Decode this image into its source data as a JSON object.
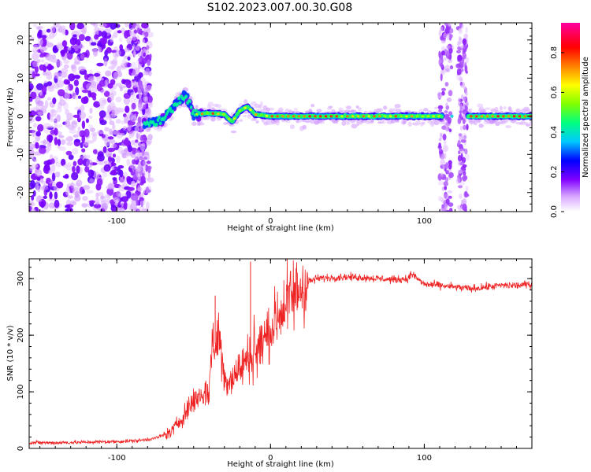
{
  "title": "S102.2023.007.00.30.G08",
  "chart_data": [
    {
      "type": "heatmap",
      "xlabel": "Height of straight line (km)",
      "ylabel": "Frequency (Hz)",
      "xlim": [
        -157,
        170
      ],
      "ylim": [
        -25,
        24.5
      ],
      "x_ticks": [
        -100,
        0,
        100
      ],
      "y_ticks": [
        -20,
        -10,
        0,
        10,
        20
      ],
      "colorbar": {
        "label": "Normalized spectral amplitude",
        "range": [
          0,
          0.95
        ],
        "ticks": [
          0.0,
          0.2,
          0.4,
          0.6,
          0.8
        ],
        "colors": [
          "#ffffff",
          "#c080ff",
          "#8000ff",
          "#0000ff",
          "#00c0ff",
          "#00ff80",
          "#80ff00",
          "#ffff00",
          "#ff8000",
          "#ff0000",
          "#ff00a0"
        ]
      },
      "ridge": [
        {
          "x": -80,
          "y": -2.0
        },
        {
          "x": -70,
          "y": -1.0
        },
        {
          "x": -65,
          "y": 1.5
        },
        {
          "x": -60,
          "y": 4.0
        },
        {
          "x": -55,
          "y": 5.5
        },
        {
          "x": -50,
          "y": 0.5
        },
        {
          "x": -40,
          "y": 0.8
        },
        {
          "x": -30,
          "y": 0.5
        },
        {
          "x": -25,
          "y": -1.5
        },
        {
          "x": -20,
          "y": 1.5
        },
        {
          "x": -15,
          "y": 2.5
        },
        {
          "x": -10,
          "y": 0.5
        },
        {
          "x": 0,
          "y": 0.0
        },
        {
          "x": 50,
          "y": 0.0
        },
        {
          "x": 100,
          "y": 0.0
        },
        {
          "x": 110,
          "y": 0.0
        },
        {
          "x": 130,
          "y": 0.0
        },
        {
          "x": 170,
          "y": 0.0
        }
      ],
      "noise_band_x": [
        -157,
        -78
      ],
      "vertical_noise_stripes": [
        [
          -90,
          -78
        ],
        [
          110,
          118
        ],
        [
          122,
          128
        ]
      ],
      "peak_amplitude": 0.95
    },
    {
      "type": "line",
      "xlabel": "Height of straight line (km)",
      "ylabel": "SNR (10 * v/v)",
      "xlim": [
        -157,
        170
      ],
      "ylim": [
        0,
        335
      ],
      "x_ticks": [
        -100,
        0,
        100
      ],
      "y_ticks": [
        0,
        100,
        200,
        300
      ],
      "color": "#ee2222",
      "series": [
        {
          "x": [
            -157,
            -140,
            -120,
            -100,
            -85,
            -75,
            -65,
            -60,
            -55,
            -50,
            -45,
            -40,
            -36,
            -30,
            -25,
            -20,
            -15,
            -13,
            -10,
            -5,
            0,
            5,
            10,
            15,
            20,
            25,
            30,
            40,
            50,
            60,
            70,
            80,
            90,
            91,
            100,
            110,
            120,
            130,
            140,
            150,
            160,
            170
          ],
          "y": [
            10,
            10,
            11,
            12,
            14,
            18,
            28,
            45,
            65,
            85,
            95,
            100,
            270,
            120,
            125,
            140,
            160,
            330,
            165,
            190,
            210,
            235,
            255,
            270,
            285,
            295,
            300,
            302,
            303,
            302,
            300,
            298,
            300,
            310,
            290,
            288,
            285,
            282,
            285,
            288,
            288,
            290
          ]
        }
      ]
    }
  ]
}
